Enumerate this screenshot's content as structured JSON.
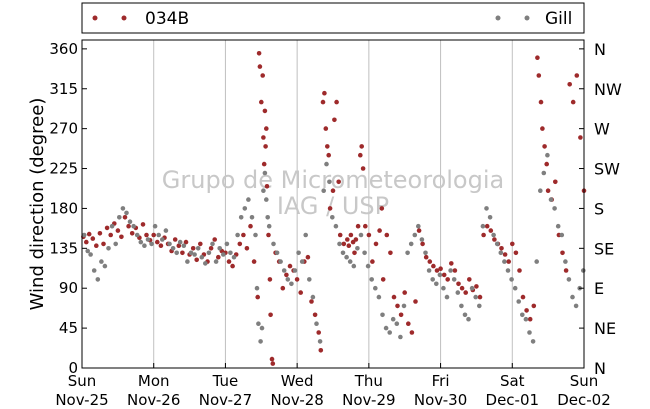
{
  "chart_data": {
    "type": "scatter",
    "ylabel": "Wind direction (degree)",
    "ylim": [
      0,
      370
    ],
    "yticks": [
      0,
      45,
      90,
      135,
      180,
      225,
      270,
      315,
      360
    ],
    "right_labels": [
      "N",
      "NE",
      "E",
      "SE",
      "S",
      "SW",
      "W",
      "NW",
      "N"
    ],
    "x_range_days": [
      0,
      7
    ],
    "x_ticks": [
      {
        "day": 0,
        "top": "Sun",
        "bottom": "Nov-25"
      },
      {
        "day": 1,
        "top": "Mon",
        "bottom": "Nov-26"
      },
      {
        "day": 2,
        "top": "Tue",
        "bottom": "Nov-27"
      },
      {
        "day": 3,
        "top": "Wed",
        "bottom": "Nov-28"
      },
      {
        "day": 4,
        "top": "Thu",
        "bottom": "Nov-29"
      },
      {
        "day": 5,
        "top": "Fri",
        "bottom": "Nov-30"
      },
      {
        "day": 6,
        "top": "Sat",
        "bottom": "Dec-01"
      },
      {
        "day": 7,
        "top": "Sun",
        "bottom": "Dec-02"
      }
    ],
    "grid": "vertical",
    "legend_placement": "top",
    "watermark": [
      "Grupo de Micrometeorologia",
      "IAG / USP"
    ],
    "series": [
      {
        "name": "034B",
        "color": "#9e2a2b",
        "points": [
          [
            0.02,
            148
          ],
          [
            0.06,
            142
          ],
          [
            0.1,
            151
          ],
          [
            0.15,
            146
          ],
          [
            0.2,
            138
          ],
          [
            0.25,
            152
          ],
          [
            0.3,
            140
          ],
          [
            0.35,
            158
          ],
          [
            0.4,
            150
          ],
          [
            0.45,
            163
          ],
          [
            0.5,
            155
          ],
          [
            0.55,
            148
          ],
          [
            0.6,
            170
          ],
          [
            0.65,
            160
          ],
          [
            0.7,
            152
          ],
          [
            0.75,
            158
          ],
          [
            0.8,
            147
          ],
          [
            0.85,
            162
          ],
          [
            0.9,
            150
          ],
          [
            0.95,
            144
          ],
          [
            1.0,
            150
          ],
          [
            1.05,
            142
          ],
          [
            1.1,
            138
          ],
          [
            1.15,
            147
          ],
          [
            1.2,
            140
          ],
          [
            1.25,
            132
          ],
          [
            1.3,
            145
          ],
          [
            1.35,
            138
          ],
          [
            1.4,
            130
          ],
          [
            1.45,
            142
          ],
          [
            1.5,
            128
          ],
          [
            1.55,
            135
          ],
          [
            1.6,
            122
          ],
          [
            1.65,
            140
          ],
          [
            1.7,
            128
          ],
          [
            1.75,
            120
          ],
          [
            1.8,
            135
          ],
          [
            1.85,
            145
          ],
          [
            1.9,
            125
          ],
          [
            1.95,
            132
          ],
          [
            2.0,
            130
          ],
          [
            2.05,
            120
          ],
          [
            2.1,
            115
          ],
          [
            2.15,
            128
          ],
          [
            2.2,
            140
          ],
          [
            2.25,
            150
          ],
          [
            2.3,
            135
          ],
          [
            2.35,
            160
          ],
          [
            2.4,
            120
          ],
          [
            2.45,
            80
          ],
          [
            2.47,
            355
          ],
          [
            2.48,
            340
          ],
          [
            2.5,
            300
          ],
          [
            2.52,
            330
          ],
          [
            2.53,
            260
          ],
          [
            2.54,
            230
          ],
          [
            2.55,
            290
          ],
          [
            2.56,
            250
          ],
          [
            2.57,
            270
          ],
          [
            2.58,
            205
          ],
          [
            2.6,
            150
          ],
          [
            2.62,
            100
          ],
          [
            2.63,
            60
          ],
          [
            2.65,
            10
          ],
          [
            2.66,
            5
          ],
          [
            2.7,
            130
          ],
          [
            2.75,
            120
          ],
          [
            2.8,
            90
          ],
          [
            2.85,
            105
          ],
          [
            2.9,
            115
          ],
          [
            2.95,
            110
          ],
          [
            3.0,
            100
          ],
          [
            3.05,
            85
          ],
          [
            3.1,
            120
          ],
          [
            3.15,
            125
          ],
          [
            3.2,
            75
          ],
          [
            3.25,
            60
          ],
          [
            3.3,
            40
          ],
          [
            3.33,
            20
          ],
          [
            3.36,
            300
          ],
          [
            3.38,
            310
          ],
          [
            3.4,
            270
          ],
          [
            3.42,
            250
          ],
          [
            3.44,
            240
          ],
          [
            3.46,
            180
          ],
          [
            3.5,
            200
          ],
          [
            3.52,
            280
          ],
          [
            3.55,
            300
          ],
          [
            3.58,
            210
          ],
          [
            3.6,
            150
          ],
          [
            3.65,
            140
          ],
          [
            3.7,
            145
          ],
          [
            3.72,
            138
          ],
          [
            3.75,
            150
          ],
          [
            3.78,
            142
          ],
          [
            3.8,
            130
          ],
          [
            3.82,
            145
          ],
          [
            3.85,
            160
          ],
          [
            3.88,
            240
          ],
          [
            3.9,
            250
          ],
          [
            3.92,
            225
          ],
          [
            3.95,
            160
          ],
          [
            4.0,
            150
          ],
          [
            4.05,
            120
          ],
          [
            4.1,
            140
          ],
          [
            4.15,
            155
          ],
          [
            4.18,
            180
          ],
          [
            4.2,
            100
          ],
          [
            4.25,
            150
          ],
          [
            4.3,
            130
          ],
          [
            4.35,
            80
          ],
          [
            4.4,
            70
          ],
          [
            4.45,
            60
          ],
          [
            4.5,
            85
          ],
          [
            4.55,
            50
          ],
          [
            4.6,
            40
          ],
          [
            4.65,
            75
          ],
          [
            4.7,
            155
          ],
          [
            4.75,
            140
          ],
          [
            4.8,
            125
          ],
          [
            4.85,
            120
          ],
          [
            4.9,
            115
          ],
          [
            4.95,
            110
          ],
          [
            5.0,
            112
          ],
          [
            5.05,
            105
          ],
          [
            5.1,
            100
          ],
          [
            5.15,
            118
          ],
          [
            5.2,
            110
          ],
          [
            5.25,
            95
          ],
          [
            5.3,
            90
          ],
          [
            5.35,
            85
          ],
          [
            5.4,
            100
          ],
          [
            5.45,
            88
          ],
          [
            5.5,
            92
          ],
          [
            5.55,
            80
          ],
          [
            5.6,
            150
          ],
          [
            5.65,
            160
          ],
          [
            5.7,
            155
          ],
          [
            5.75,
            145
          ],
          [
            5.8,
            140
          ],
          [
            5.85,
            135
          ],
          [
            5.9,
            128
          ],
          [
            5.95,
            120
          ],
          [
            6.0,
            140
          ],
          [
            6.05,
            130
          ],
          [
            6.1,
            110
          ],
          [
            6.15,
            80
          ],
          [
            6.2,
            65
          ],
          [
            6.25,
            55
          ],
          [
            6.3,
            70
          ],
          [
            6.35,
            350
          ],
          [
            6.37,
            330
          ],
          [
            6.4,
            300
          ],
          [
            6.42,
            270
          ],
          [
            6.45,
            250
          ],
          [
            6.48,
            230
          ],
          [
            6.5,
            200
          ],
          [
            6.55,
            190
          ],
          [
            6.6,
            210
          ],
          [
            6.65,
            150
          ],
          [
            6.7,
            130
          ],
          [
            6.75,
            110
          ],
          [
            6.8,
            320
          ],
          [
            6.85,
            300
          ],
          [
            6.9,
            330
          ],
          [
            6.95,
            260
          ],
          [
            7.0,
            200
          ]
        ]
      },
      {
        "name": "Gill",
        "color": "#7f7f7f",
        "points": [
          [
            0.03,
            150
          ],
          [
            0.08,
            132
          ],
          [
            0.12,
            128
          ],
          [
            0.17,
            110
          ],
          [
            0.22,
            100
          ],
          [
            0.27,
            120
          ],
          [
            0.32,
            115
          ],
          [
            0.37,
            135
          ],
          [
            0.42,
            160
          ],
          [
            0.47,
            140
          ],
          [
            0.52,
            170
          ],
          [
            0.57,
            180
          ],
          [
            0.62,
            175
          ],
          [
            0.67,
            165
          ],
          [
            0.72,
            160
          ],
          [
            0.77,
            150
          ],
          [
            0.82,
            142
          ],
          [
            0.87,
            138
          ],
          [
            0.92,
            145
          ],
          [
            0.97,
            140
          ],
          [
            1.02,
            160
          ],
          [
            1.07,
            150
          ],
          [
            1.12,
            145
          ],
          [
            1.17,
            155
          ],
          [
            1.22,
            140
          ],
          [
            1.27,
            135
          ],
          [
            1.32,
            130
          ],
          [
            1.37,
            142
          ],
          [
            1.42,
            138
          ],
          [
            1.47,
            120
          ],
          [
            1.52,
            130
          ],
          [
            1.57,
            128
          ],
          [
            1.62,
            135
          ],
          [
            1.67,
            125
          ],
          [
            1.72,
            118
          ],
          [
            1.77,
            130
          ],
          [
            1.82,
            140
          ],
          [
            1.87,
            120
          ],
          [
            1.92,
            135
          ],
          [
            1.97,
            128
          ],
          [
            2.02,
            140
          ],
          [
            2.07,
            130
          ],
          [
            2.12,
            125
          ],
          [
            2.17,
            150
          ],
          [
            2.22,
            170
          ],
          [
            2.27,
            180
          ],
          [
            2.32,
            190
          ],
          [
            2.37,
            170
          ],
          [
            2.42,
            150
          ],
          [
            2.44,
            90
          ],
          [
            2.46,
            50
          ],
          [
            2.49,
            30
          ],
          [
            2.51,
            45
          ],
          [
            2.53,
            200
          ],
          [
            2.55,
            220
          ],
          [
            2.57,
            190
          ],
          [
            2.59,
            170
          ],
          [
            2.61,
            160
          ],
          [
            2.67,
            140
          ],
          [
            2.72,
            130
          ],
          [
            2.77,
            120
          ],
          [
            2.82,
            110
          ],
          [
            2.87,
            100
          ],
          [
            2.92,
            95
          ],
          [
            2.97,
            110
          ],
          [
            3.02,
            130
          ],
          [
            3.07,
            120
          ],
          [
            3.12,
            150
          ],
          [
            3.17,
            100
          ],
          [
            3.22,
            80
          ],
          [
            3.27,
            50
          ],
          [
            3.32,
            30
          ],
          [
            3.37,
            200
          ],
          [
            3.41,
            230
          ],
          [
            3.45,
            210
          ],
          [
            3.49,
            170
          ],
          [
            3.54,
            160
          ],
          [
            3.59,
            140
          ],
          [
            3.64,
            130
          ],
          [
            3.69,
            125
          ],
          [
            3.74,
            120
          ],
          [
            3.79,
            115
          ],
          [
            3.84,
            135
          ],
          [
            3.89,
            150
          ],
          [
            3.94,
            130
          ],
          [
            3.99,
            115
          ],
          [
            4.04,
            100
          ],
          [
            4.09,
            90
          ],
          [
            4.14,
            80
          ],
          [
            4.19,
            60
          ],
          [
            4.24,
            45
          ],
          [
            4.29,
            40
          ],
          [
            4.34,
            55
          ],
          [
            4.39,
            50
          ],
          [
            4.44,
            35
          ],
          [
            4.49,
            70
          ],
          [
            4.54,
            130
          ],
          [
            4.59,
            140
          ],
          [
            4.64,
            150
          ],
          [
            4.69,
            160
          ],
          [
            4.74,
            145
          ],
          [
            4.79,
            130
          ],
          [
            4.84,
            110
          ],
          [
            4.89,
            100
          ],
          [
            4.94,
            95
          ],
          [
            4.99,
            105
          ],
          [
            5.04,
            90
          ],
          [
            5.09,
            80
          ],
          [
            5.14,
            110
          ],
          [
            5.19,
            100
          ],
          [
            5.24,
            85
          ],
          [
            5.29,
            70
          ],
          [
            5.34,
            60
          ],
          [
            5.39,
            55
          ],
          [
            5.44,
            90
          ],
          [
            5.49,
            80
          ],
          [
            5.54,
            70
          ],
          [
            5.59,
            160
          ],
          [
            5.64,
            180
          ],
          [
            5.69,
            170
          ],
          [
            5.74,
            150
          ],
          [
            5.79,
            140
          ],
          [
            5.84,
            130
          ],
          [
            5.89,
            120
          ],
          [
            5.94,
            110
          ],
          [
            5.99,
            100
          ],
          [
            6.04,
            90
          ],
          [
            6.09,
            75
          ],
          [
            6.14,
            60
          ],
          [
            6.19,
            55
          ],
          [
            6.24,
            40
          ],
          [
            6.29,
            30
          ],
          [
            6.34,
            120
          ],
          [
            6.39,
            200
          ],
          [
            6.44,
            220
          ],
          [
            6.49,
            240
          ],
          [
            6.54,
            190
          ],
          [
            6.59,
            180
          ],
          [
            6.64,
            160
          ],
          [
            6.69,
            150
          ],
          [
            6.74,
            120
          ],
          [
            6.79,
            100
          ],
          [
            6.84,
            80
          ],
          [
            6.89,
            70
          ],
          [
            6.94,
            90
          ],
          [
            6.99,
            110
          ]
        ]
      }
    ]
  }
}
